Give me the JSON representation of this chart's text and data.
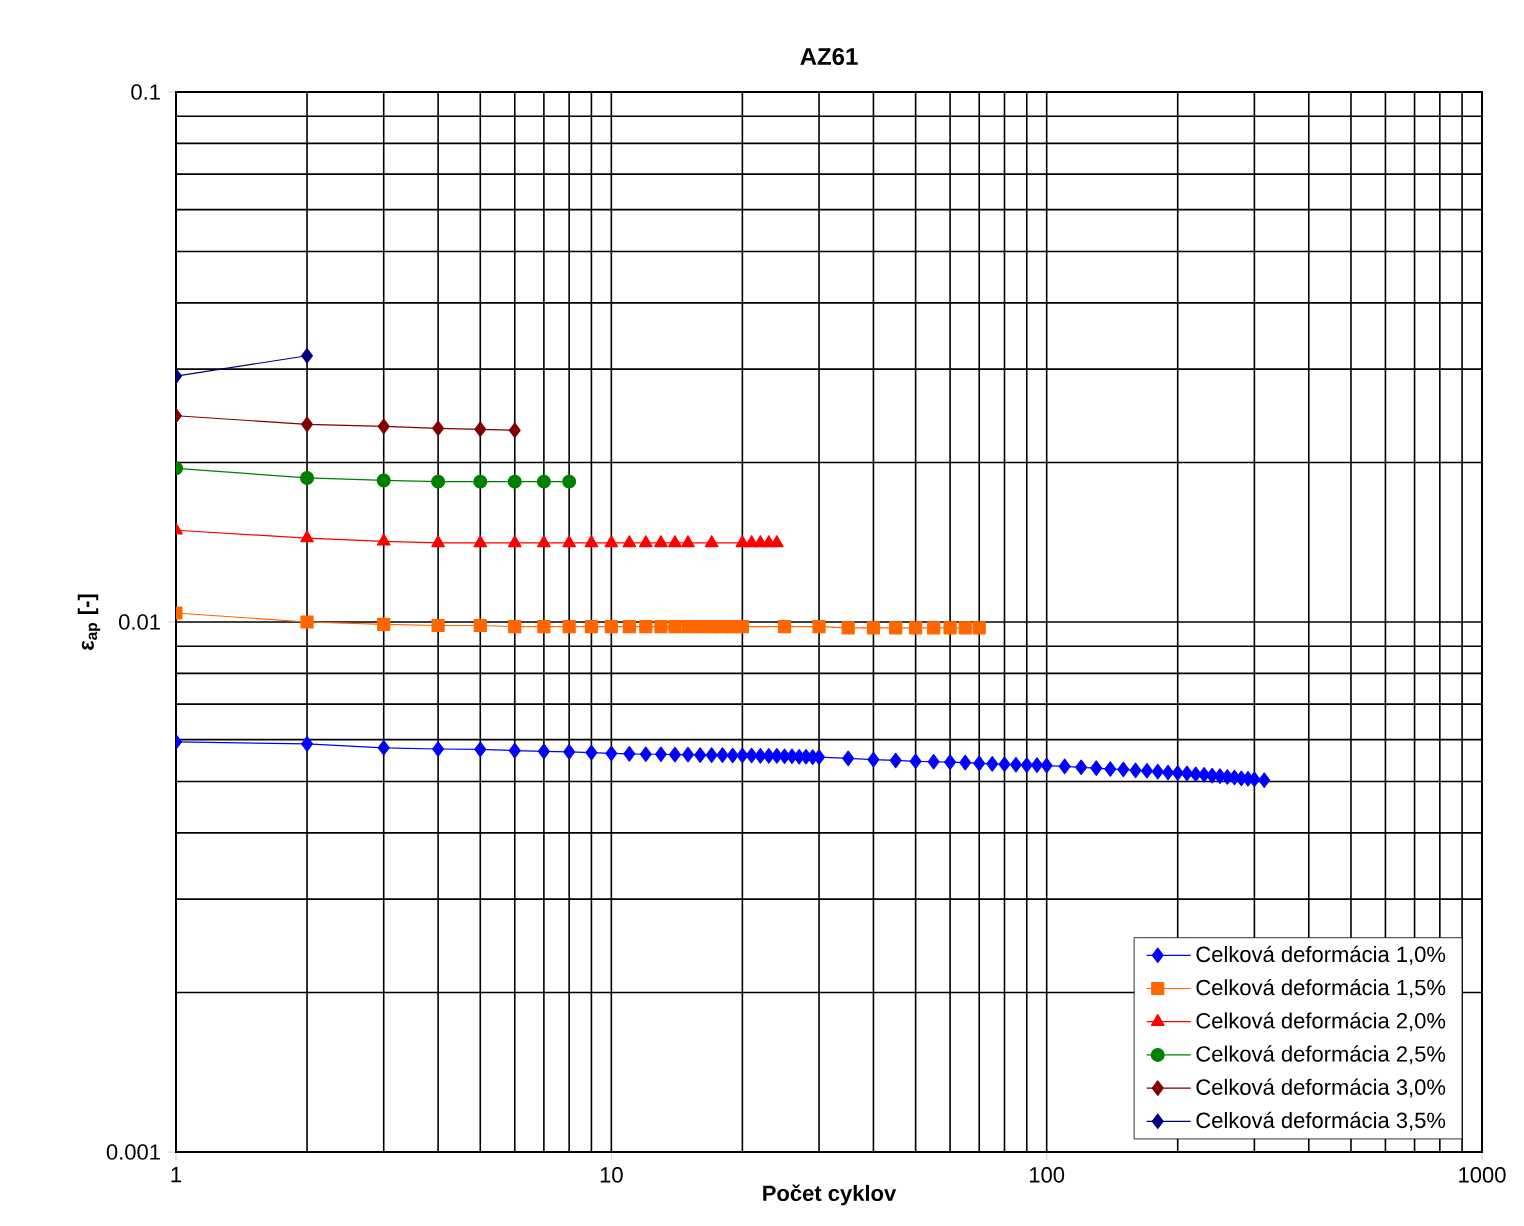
{
  "chart_data": {
    "type": "line",
    "title": "AZ61",
    "xlabel": "Počet cyklov",
    "ylabel": "ε$_{ap}$  [-]",
    "log": "xy",
    "grid": true,
    "legend": "bottom right",
    "xlim": [
      1,
      1000
    ],
    "ylim": [
      0.001,
      0.1
    ],
    "xticks": [
      1,
      10,
      100,
      1000
    ],
    "yticks": [
      0.001,
      0.01,
      0.1
    ],
    "series": [
      {
        "name": "Celková deformácia 1,0%",
        "color": "#0000ff",
        "marker": "diamond",
        "x": [
          1,
          2,
          3,
          4,
          5,
          6,
          7,
          8,
          9,
          10,
          11,
          12,
          13,
          14,
          15,
          16,
          17,
          18,
          19,
          20,
          21,
          22,
          23,
          24,
          25,
          26,
          27,
          28,
          29,
          30,
          35,
          40,
          45,
          50,
          55,
          60,
          65,
          70,
          75,
          80,
          85,
          90,
          95,
          100,
          110,
          120,
          130,
          140,
          150,
          160,
          170,
          180,
          190,
          200,
          210,
          220,
          230,
          240,
          250,
          260,
          270,
          280,
          290,
          300,
          316
        ],
        "values": [
          0.00594,
          0.00589,
          0.00579,
          0.00576,
          0.00575,
          0.00572,
          0.0057,
          0.00569,
          0.00567,
          0.00565,
          0.00564,
          0.00563,
          0.00563,
          0.00562,
          0.00562,
          0.00561,
          0.00561,
          0.00561,
          0.0056,
          0.0056,
          0.0056,
          0.00559,
          0.00559,
          0.00559,
          0.00558,
          0.00558,
          0.00557,
          0.00557,
          0.00556,
          0.00556,
          0.00553,
          0.0055,
          0.00548,
          0.00546,
          0.00545,
          0.00544,
          0.00543,
          0.00541,
          0.0054,
          0.00539,
          0.00538,
          0.00537,
          0.00537,
          0.00536,
          0.00534,
          0.00532,
          0.0053,
          0.00528,
          0.00527,
          0.00525,
          0.00524,
          0.00522,
          0.0052,
          0.00519,
          0.00518,
          0.00516,
          0.00515,
          0.00513,
          0.00512,
          0.0051,
          0.00509,
          0.00507,
          0.00506,
          0.00505,
          0.00503
        ]
      },
      {
        "name": "Celková deformácia 1,5%",
        "color": "#ff6600",
        "marker": "square",
        "x": [
          1,
          2,
          3,
          4,
          5,
          6,
          7,
          8,
          9,
          10,
          11,
          12,
          13,
          14,
          15,
          16,
          17,
          18,
          19,
          20,
          25,
          30,
          35,
          40,
          45,
          50,
          55,
          60,
          65,
          70
        ],
        "values": [
          0.0104,
          0.01,
          0.0099,
          0.00985,
          0.00985,
          0.0098,
          0.0098,
          0.0098,
          0.0098,
          0.0098,
          0.0098,
          0.0098,
          0.0098,
          0.0098,
          0.0098,
          0.0098,
          0.0098,
          0.0098,
          0.0098,
          0.0098,
          0.0098,
          0.0098,
          0.00975,
          0.00975,
          0.00975,
          0.00975,
          0.00975,
          0.00975,
          0.00975,
          0.00975
        ]
      },
      {
        "name": "Celková deformácia 2,0%",
        "color": "#ff0000",
        "marker": "triangle",
        "x": [
          1,
          2,
          3,
          4,
          5,
          6,
          7,
          8,
          9,
          10,
          11,
          12,
          13,
          14,
          15,
          17,
          20,
          21,
          22,
          23,
          24
        ],
        "values": [
          0.0149,
          0.0144,
          0.0142,
          0.0141,
          0.0141,
          0.0141,
          0.0141,
          0.0141,
          0.0141,
          0.0141,
          0.0141,
          0.0141,
          0.0141,
          0.0141,
          0.0141,
          0.0141,
          0.0141,
          0.0141,
          0.0141,
          0.0141,
          0.0141
        ]
      },
      {
        "name": "Celková deformácia 2,5%",
        "color": "#008000",
        "marker": "circle",
        "x": [
          1,
          2,
          3,
          4,
          5,
          6,
          7,
          8
        ],
        "values": [
          0.0195,
          0.0187,
          0.0185,
          0.0184,
          0.0184,
          0.0184,
          0.0184,
          0.0184
        ]
      },
      {
        "name": "Celková deformácia 3,0%",
        "color": "#800000",
        "marker": "diamond",
        "x": [
          1,
          2,
          3,
          4,
          5,
          6
        ],
        "values": [
          0.0245,
          0.0236,
          0.0234,
          0.0232,
          0.0231,
          0.023
        ]
      },
      {
        "name": "Celková deformácia 3,5%",
        "color": "#000080",
        "marker": "diamond",
        "x": [
          1,
          2
        ],
        "values": [
          0.0291,
          0.0318
        ]
      }
    ]
  }
}
